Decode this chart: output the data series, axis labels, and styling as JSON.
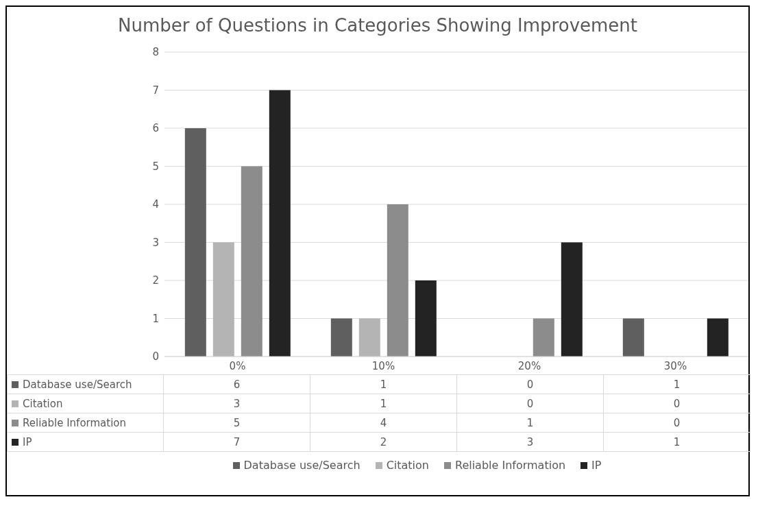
{
  "chart_data": {
    "type": "bar",
    "title": "Number of Questions in Categories Showing Improvement",
    "categories": [
      "0%",
      "10%",
      "20%",
      "30%"
    ],
    "series": [
      {
        "name": "Database use/Search",
        "color": "#5f5f5f",
        "values": [
          6,
          1,
          0,
          1
        ]
      },
      {
        "name": "Citation",
        "color": "#b4b4b4",
        "values": [
          3,
          1,
          0,
          0
        ]
      },
      {
        "name": "Reliable Information",
        "color": "#8c8c8c",
        "values": [
          5,
          4,
          1,
          0
        ]
      },
      {
        "name": "IP",
        "color": "#232323",
        "values": [
          7,
          2,
          3,
          1
        ]
      }
    ],
    "ylim": [
      0,
      8
    ],
    "yticks": [
      0,
      1,
      2,
      3,
      4,
      5,
      6,
      7,
      8
    ],
    "grid": "y",
    "legend": "bottom",
    "data_labels": true
  }
}
